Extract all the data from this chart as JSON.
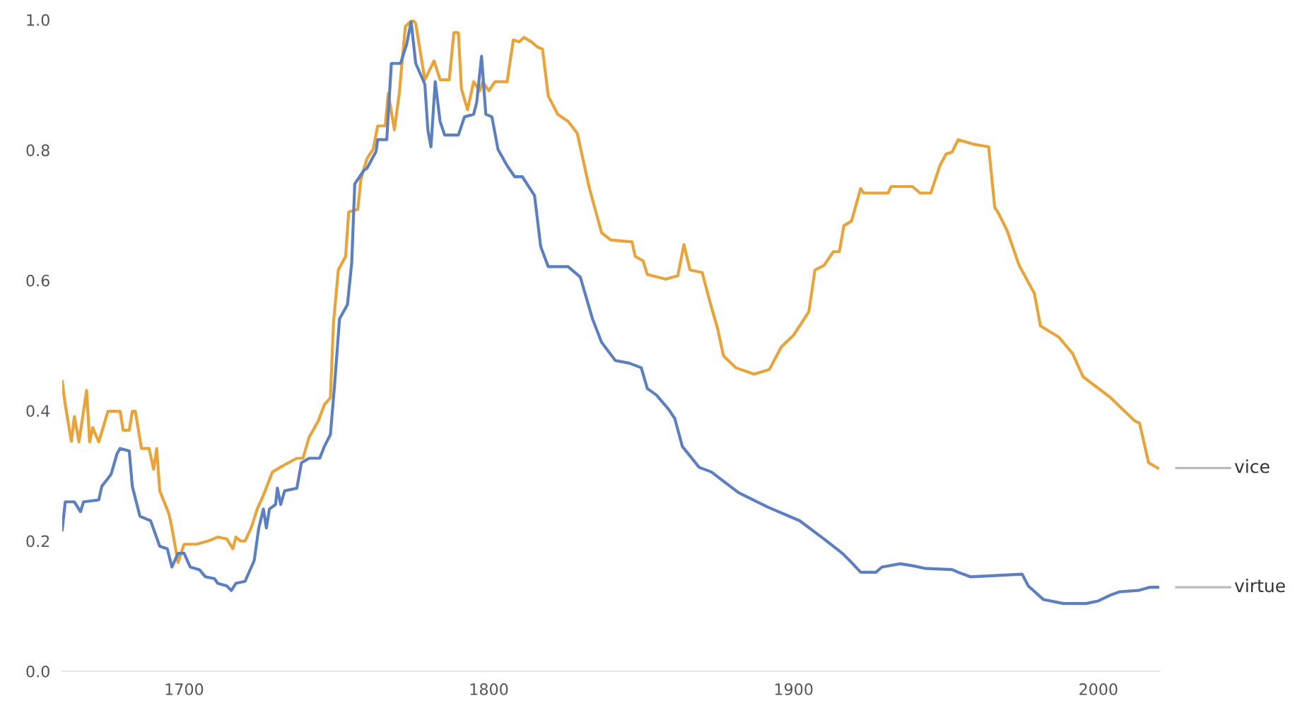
{
  "chart_data": {
    "type": "line",
    "xlim": [
      1660,
      2020
    ],
    "ylim": [
      0,
      1.0
    ],
    "xticks": [
      1700,
      1800,
      1900,
      2000
    ],
    "yticks": [
      {
        "value": 0,
        "label": "0.0"
      },
      {
        "value": 0.2,
        "label": "0.2"
      },
      {
        "value": 0.4,
        "label": "0.4"
      },
      {
        "value": 0.6,
        "label": "0.6"
      },
      {
        "value": 0.8,
        "label": "0.8"
      },
      {
        "value": 1.0,
        "label": "1.0"
      }
    ],
    "grid": false,
    "legend": false,
    "marker": "none",
    "line_style": "solid",
    "series": [
      {
        "name": "vice",
        "color": "#e8a33a",
        "x": [
          1660,
          1661,
          1663,
          1664,
          1665.5,
          1668,
          1669,
          1670,
          1672,
          1675,
          1679,
          1680,
          1682,
          1683,
          1684,
          1686,
          1688.5,
          1690,
          1691,
          1692,
          1695,
          1696,
          1698,
          1700,
          1704,
          1708,
          1711,
          1714,
          1716,
          1717,
          1718.5,
          1720,
          1722,
          1724,
          1726,
          1729,
          1733,
          1737,
          1739,
          1741,
          1744,
          1746,
          1748,
          1749,
          1750.6,
          1753,
          1754,
          1757,
          1758,
          1760,
          1762,
          1763.5,
          1766,
          1767,
          1769,
          1770.6,
          1772.6,
          1775,
          1776,
          1779,
          1782,
          1784,
          1787,
          1788.5,
          1790,
          1791,
          1793,
          1795,
          1797,
          1798,
          1800,
          1802,
          1806,
          1808,
          1810,
          1811.5,
          1814,
          1816,
          1817.6,
          1819.5,
          1822.6,
          1826,
          1829,
          1833,
          1837,
          1840,
          1847,
          1848,
          1850.6,
          1852,
          1858,
          1862,
          1864,
          1866,
          1870,
          1872.6,
          1875,
          1877,
          1881,
          1887,
          1892,
          1896,
          1900,
          1905,
          1907,
          1910,
          1913,
          1915,
          1916.5,
          1919,
          1922,
          1923,
          1931,
          1932,
          1939,
          1941.5,
          1945,
          1948,
          1950,
          1952,
          1954,
          1959,
          1964,
          1966,
          1967,
          1970,
          1974,
          1979,
          1981,
          1987,
          1991.5,
          1995,
          2004,
          2012,
          2013.5,
          2016.5,
          2019.5
        ],
        "values": [
          0.445,
          0.409,
          0.353,
          0.391,
          0.352,
          0.431,
          0.352,
          0.374,
          0.352,
          0.399,
          0.399,
          0.37,
          0.37,
          0.399,
          0.399,
          0.342,
          0.342,
          0.31,
          0.342,
          0.277,
          0.242,
          0.22,
          0.167,
          0.195,
          0.195,
          0.2,
          0.206,
          0.203,
          0.188,
          0.206,
          0.2,
          0.2,
          0.22,
          0.249,
          0.27,
          0.306,
          0.317,
          0.327,
          0.327,
          0.359,
          0.384,
          0.409,
          0.42,
          0.534,
          0.616,
          0.637,
          0.705,
          0.709,
          0.755,
          0.787,
          0.801,
          0.837,
          0.837,
          0.887,
          0.831,
          0.887,
          0.99,
          1.0,
          0.994,
          0.908,
          0.937,
          0.908,
          0.908,
          0.98,
          0.98,
          0.894,
          0.862,
          0.905,
          0.891,
          0.905,
          0.891,
          0.905,
          0.905,
          0.969,
          0.966,
          0.973,
          0.966,
          0.958,
          0.955,
          0.883,
          0.855,
          0.844,
          0.826,
          0.741,
          0.673,
          0.662,
          0.659,
          0.637,
          0.63,
          0.609,
          0.602,
          0.607,
          0.655,
          0.616,
          0.612,
          0.566,
          0.527,
          0.484,
          0.466,
          0.456,
          0.463,
          0.498,
          0.516,
          0.552,
          0.616,
          0.623,
          0.644,
          0.644,
          0.684,
          0.691,
          0.741,
          0.734,
          0.734,
          0.744,
          0.744,
          0.734,
          0.734,
          0.776,
          0.794,
          0.797,
          0.816,
          0.809,
          0.805,
          0.712,
          0.705,
          0.677,
          0.623,
          0.58,
          0.53,
          0.513,
          0.488,
          0.452,
          0.42,
          0.384,
          0.381,
          0.32,
          0.312
        ]
      },
      {
        "name": "virtue",
        "color": "#5b7fbf",
        "x": [
          1660,
          1661,
          1664,
          1666,
          1667,
          1672,
          1673,
          1676,
          1678,
          1679,
          1682,
          1683,
          1685.5,
          1689,
          1692,
          1694.5,
          1696,
          1698,
          1700,
          1702,
          1705,
          1707,
          1710,
          1711,
          1714,
          1715.5,
          1717,
          1720,
          1723,
          1724.5,
          1726,
          1727,
          1728,
          1730,
          1730.6,
          1731.7,
          1733,
          1737,
          1738.5,
          1741,
          1744.5,
          1746,
          1748,
          1749.4,
          1751,
          1753.6,
          1755,
          1756,
          1759,
          1760,
          1763,
          1763.5,
          1766.5,
          1768,
          1771,
          1773,
          1774.5,
          1776,
          1779,
          1780,
          1781,
          1782.4,
          1784,
          1785.5,
          1790,
          1792,
          1795,
          1796,
          1797.6,
          1799,
          1801,
          1803,
          1806,
          1808.5,
          1811,
          1815,
          1817,
          1819.5,
          1826,
          1830,
          1834,
          1837,
          1841.5,
          1846,
          1850,
          1852,
          1855,
          1859,
          1861,
          1863.5,
          1869,
          1873,
          1882,
          1891.5,
          1902,
          1910,
          1916,
          1919,
          1922,
          1927,
          1929,
          1935,
          1939,
          1943,
          1952,
          1954,
          1958,
          1975,
          1977,
          1982,
          1988.5,
          1996,
          2000,
          2004,
          2007,
          2013,
          2017,
          2019.5
        ],
        "values": [
          0.217,
          0.26,
          0.26,
          0.245,
          0.26,
          0.263,
          0.284,
          0.302,
          0.334,
          0.342,
          0.338,
          0.284,
          0.238,
          0.231,
          0.192,
          0.188,
          0.16,
          0.181,
          0.181,
          0.16,
          0.156,
          0.145,
          0.142,
          0.135,
          0.131,
          0.124,
          0.135,
          0.138,
          0.17,
          0.22,
          0.249,
          0.22,
          0.249,
          0.256,
          0.281,
          0.256,
          0.277,
          0.281,
          0.32,
          0.327,
          0.327,
          0.345,
          0.363,
          0.441,
          0.541,
          0.563,
          0.627,
          0.748,
          0.769,
          0.772,
          0.798,
          0.816,
          0.816,
          0.933,
          0.933,
          0.962,
          0.997,
          0.933,
          0.901,
          0.83,
          0.805,
          0.905,
          0.844,
          0.823,
          0.823,
          0.851,
          0.855,
          0.873,
          0.944,
          0.855,
          0.851,
          0.801,
          0.776,
          0.759,
          0.759,
          0.73,
          0.652,
          0.621,
          0.621,
          0.605,
          0.541,
          0.505,
          0.477,
          0.473,
          0.466,
          0.434,
          0.424,
          0.402,
          0.388,
          0.345,
          0.313,
          0.306,
          0.274,
          0.252,
          0.231,
          0.203,
          0.181,
          0.167,
          0.152,
          0.152,
          0.16,
          0.165,
          0.162,
          0.158,
          0.156,
          0.152,
          0.145,
          0.149,
          0.131,
          0.11,
          0.104,
          0.104,
          0.108,
          0.117,
          0.122,
          0.124,
          0.129,
          0.129
        ]
      }
    ]
  }
}
